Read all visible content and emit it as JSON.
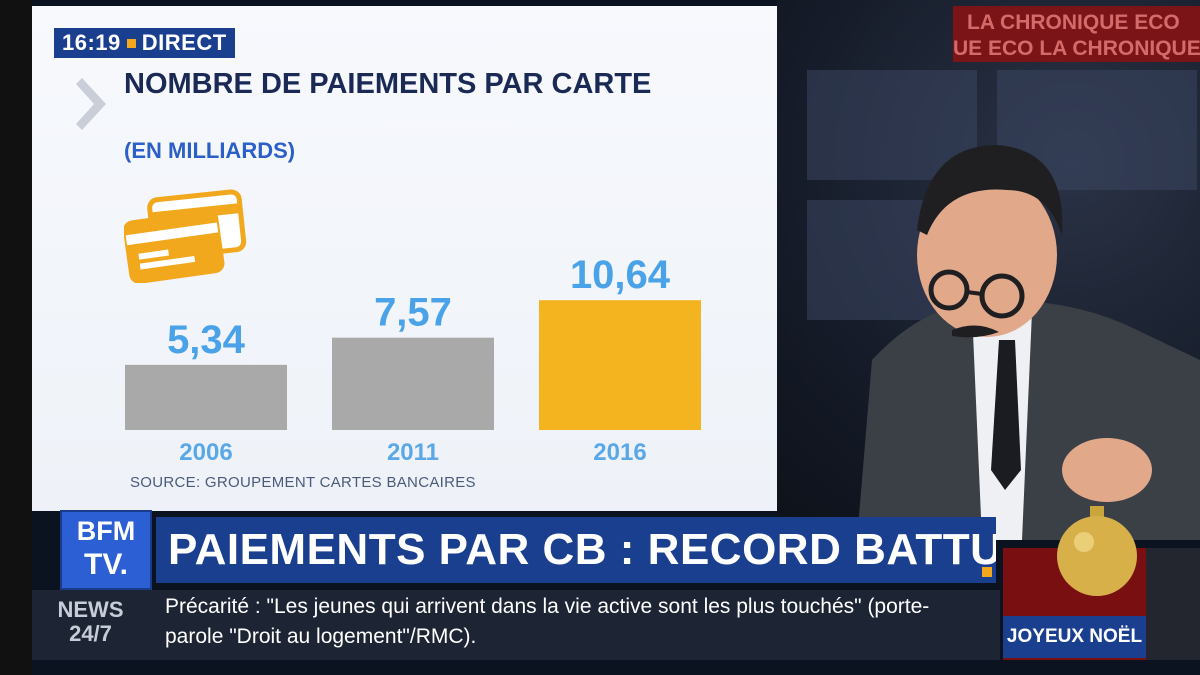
{
  "badge": {
    "time": "16:19",
    "live": "DIRECT"
  },
  "graphic": {
    "title": "NOMBRE DE PAIEMENTS PAR CARTE",
    "subtitle": "(EN MILLIARDS)",
    "source": "SOURCE: GROUPEMENT CARTES BANCAIRES"
  },
  "chart_data": {
    "type": "bar",
    "title": "NOMBRE DE PAIEMENTS PAR CARTE",
    "subtitle": "(EN MILLIARDS)",
    "categories": [
      "2006",
      "2011",
      "2016"
    ],
    "values": [
      5.34,
      7.57,
      10.64
    ],
    "labels": [
      "5,34",
      "7,57",
      "10,64"
    ],
    "colors": [
      "#a9a9a9",
      "#a9a9a9",
      "#f4b41f"
    ],
    "label_color": "#4aa3e8",
    "category_color": "#5aa8e6",
    "ylim": [
      0,
      11
    ]
  },
  "chronique": {
    "line1": "LA CHRONIQUE ECO",
    "line2": "UE ECO  LA CHRONIQUE"
  },
  "logo": {
    "line1": "BFM",
    "line2": "TV."
  },
  "headline": "PAIEMENTS PAR CB : RECORD BATTU",
  "news": {
    "line1": "NEWS",
    "line2": "24/7"
  },
  "ticker": "Précarité : \"Les jeunes qui arrivent dans la vie active sont les plus touchés\" (porte-parole \"Droit au logement\"/RMC).",
  "noel": "JOYEUX NOËL"
}
